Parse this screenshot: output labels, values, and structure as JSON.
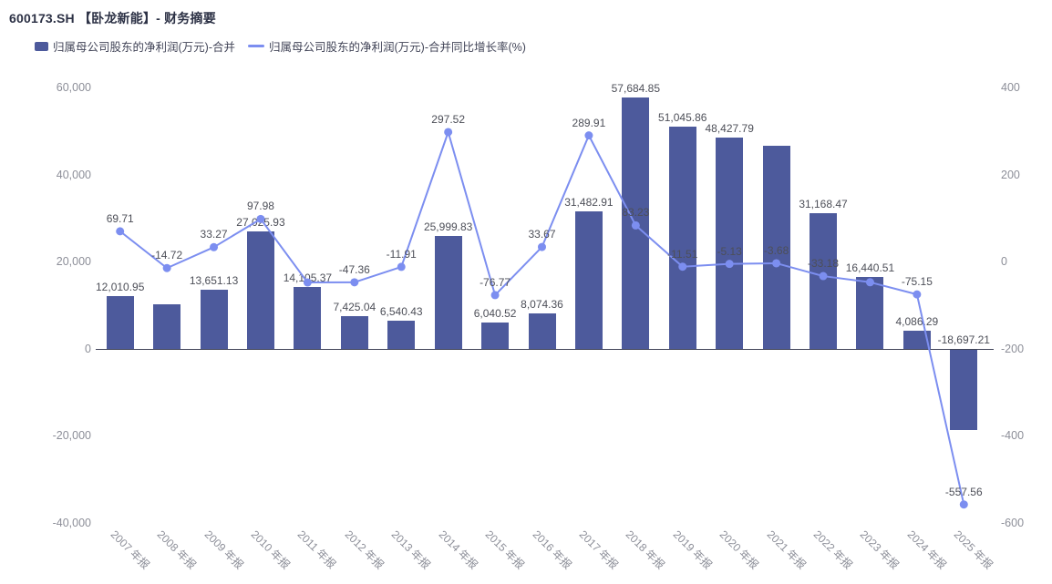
{
  "header": {
    "title": "600173.SH 【卧龙新能】- 财务摘要"
  },
  "legend": {
    "items": [
      {
        "label": "归属母公司股东的净利润(万元)-合并",
        "type": "bar",
        "color": "#4d5a9c"
      },
      {
        "label": "归属母公司股东的净利润(万元)-合并同比增长率(%)",
        "type": "line",
        "color": "#7c8ef0"
      }
    ]
  },
  "chart_data": {
    "type": "combo-bar-line",
    "title": "600173.SH 【卧龙新能】- 财务摘要",
    "grid": false,
    "legend_position": "top-left",
    "categories": [
      "2007 年报",
      "2008 年报",
      "2009 年报",
      "2010 年报",
      "2011 年报",
      "2012 年报",
      "2013 年报",
      "2014 年报",
      "2015 年报",
      "2016 年报",
      "2017 年报",
      "2018 年报",
      "2019 年报",
      "2020 年报",
      "2021 年报",
      "2022 年报",
      "2023 年报",
      "2024 年报",
      "2025 年报"
    ],
    "series": [
      {
        "name": "归属母公司股东的净利润(万元)-合并",
        "type": "bar",
        "axis": "left",
        "color": "#4d5a9c",
        "values": [
          12010.95,
          10242.94,
          13651.13,
          27025.93,
          14105.37,
          7425.04,
          6540.43,
          25999.83,
          6040.52,
          8074.36,
          31482.91,
          57684.85,
          51045.86,
          48427.79,
          46645.64,
          31168.47,
          16440.51,
          4086.29,
          -18697.21
        ],
        "labels": [
          "12,010.95",
          null,
          "13,651.13",
          "27,025.93",
          "14,105.37",
          "7,425.04",
          "6,540.43",
          "25,999.83",
          "6,040.52",
          "8,074.36",
          "31,482.91",
          "57,684.85",
          "51,045.86",
          "48,427.79",
          null,
          "31,168.47",
          "16,440.51",
          "4,086.29",
          "-18,697.21"
        ]
      },
      {
        "name": "归属母公司股东的净利润(万元)-合并同比增长率(%)",
        "type": "line",
        "axis": "right",
        "color": "#7c8ef0",
        "values": [
          69.71,
          -14.72,
          33.27,
          97.98,
          -47.81,
          -47.36,
          -11.91,
          297.52,
          -76.77,
          33.67,
          289.91,
          83.23,
          -11.51,
          -5.13,
          -3.68,
          -33.18,
          -47.25,
          -75.15,
          -557.56
        ],
        "labels": [
          "69.71",
          "-14.72",
          "33.27",
          "97.98",
          null,
          "-47.36",
          "-11.91",
          "297.52",
          "-76.77",
          "33.67",
          "289.91",
          "83.23",
          "-11.51",
          "-5.13",
          "-3.68",
          "-33.18",
          null,
          "-75.15",
          "-557.56"
        ]
      }
    ],
    "left_axis": {
      "min": -40000,
      "max": 60000,
      "ticks": [
        {
          "v": 60000,
          "label": "60,000"
        },
        {
          "v": 40000,
          "label": "40,000"
        },
        {
          "v": 20000,
          "label": "20,000"
        },
        {
          "v": 0,
          "label": "0"
        },
        {
          "v": -20000,
          "label": "-20,000"
        },
        {
          "v": -40000,
          "label": "-40,000"
        }
      ]
    },
    "right_axis": {
      "min": -600,
      "max": 400,
      "ticks": [
        {
          "v": 400,
          "label": "400"
        },
        {
          "v": 200,
          "label": "200"
        },
        {
          "v": 0,
          "label": "0"
        },
        {
          "v": -200,
          "label": "-200"
        },
        {
          "v": -400,
          "label": "-400"
        },
        {
          "v": -600,
          "label": "-600"
        }
      ]
    }
  },
  "colors": {
    "bar": "#4d5a9c",
    "line": "#7c8ef0",
    "axis_text": "#8c8e98",
    "data_label": "#4d4f58",
    "axis_line": "#3f4357",
    "title_text": "#2c3145"
  }
}
